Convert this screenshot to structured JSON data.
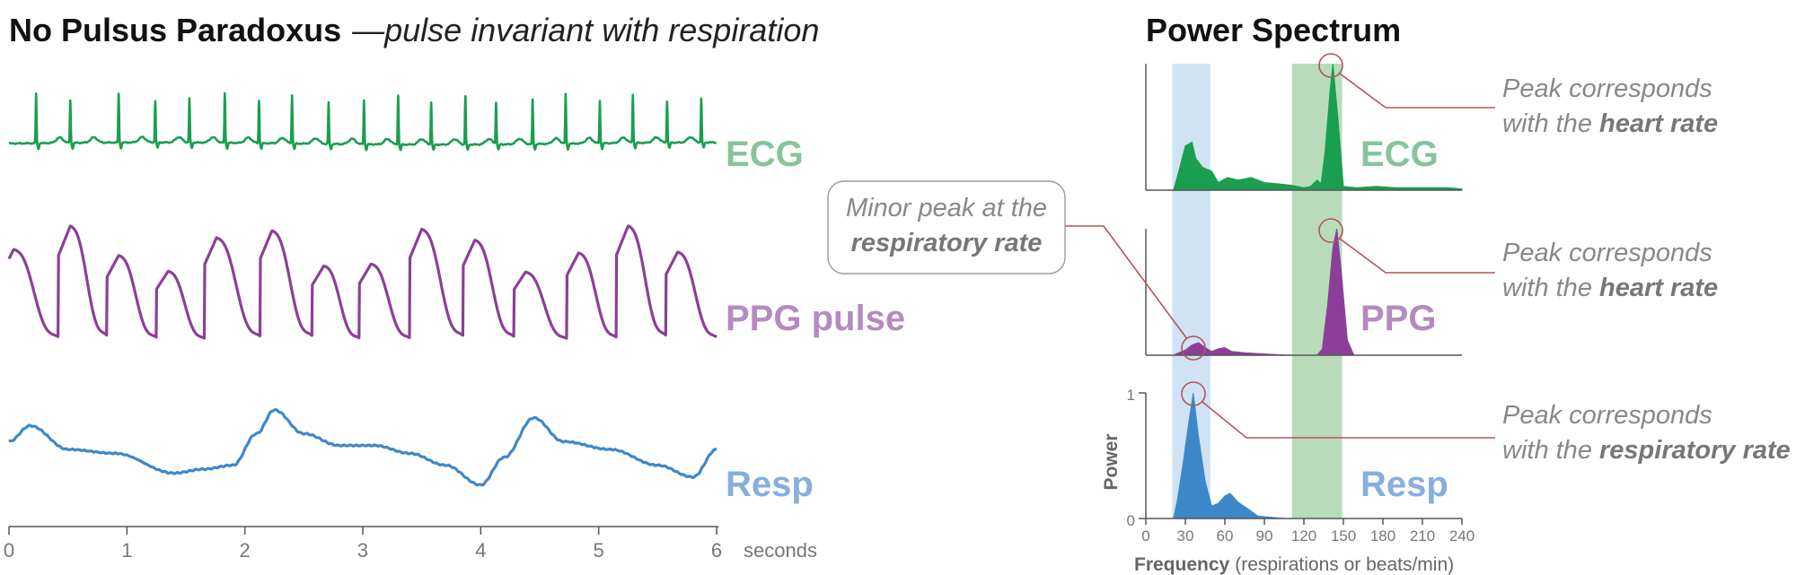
{
  "header": {
    "title": "No Pulsus Paradoxus",
    "dash": "—",
    "subtitle_pre": "pulse ",
    "subtitle_highlight": "invariant",
    "subtitle_post": " with respiration",
    "spectrum_title": "Power Spectrum"
  },
  "signals": {
    "ecg_label": "ECG",
    "ppg_label": "PPG pulse",
    "resp_label": "Resp"
  },
  "spectra": {
    "ecg_label": "ECG",
    "ppg_label": "PPG",
    "resp_label": "Resp"
  },
  "annotations": {
    "ecg_peak": {
      "line1": "Peak corresponds",
      "line2_pre": "with the ",
      "line2_bold": "heart rate"
    },
    "ppg_peak": {
      "line1": "Peak corresponds",
      "line2_pre": "with the ",
      "line2_bold": "heart rate"
    },
    "resp_peak": {
      "line1": "Peak corresponds",
      "line2_pre": "with the ",
      "line2_bold": "respiratory rate"
    },
    "minor_peak": {
      "line1": "Minor peak at the",
      "line2_bold": "respiratory rate"
    }
  },
  "colors": {
    "ecg": "#1a9e50",
    "ecg_label": "#86c59a",
    "ppg": "#8c3f98",
    "ppg_label": "#b48bc0",
    "resp": "#3d88c8",
    "resp_label": "#86aede",
    "resp_band": "#cfe3f4",
    "heart_band": "#b8dcb9",
    "callout": "#b5535c",
    "axis": "#555555"
  },
  "chart_data": [
    {
      "type": "line",
      "title": "No Pulsus Paradoxus —pulse invariant with respiration",
      "xlabel": "seconds",
      "xlim": [
        0,
        6
      ],
      "xticks": [
        0,
        1,
        2,
        3,
        4,
        5,
        6
      ],
      "series": [
        {
          "name": "ECG",
          "beats_s": [
            0.23,
            0.52,
            0.93,
            1.24,
            1.53,
            1.83,
            2.12,
            2.4,
            2.71,
            3.01,
            3.3,
            3.58,
            3.87,
            4.13,
            4.44,
            4.72,
            5.01,
            5.29,
            5.58,
            5.87
          ]
        },
        {
          "name": "PPG pulse",
          "peaks_s": [
            0.04,
            0.52,
            0.93,
            1.35,
            1.76,
            2.23,
            2.67,
            3.07,
            3.5,
            3.95,
            4.38,
            4.83,
            5.25,
            5.67
          ]
        },
        {
          "name": "Resp",
          "x": [
            0,
            0.18,
            0.5,
            0.9,
            1.4,
            1.65,
            1.9,
            2.1,
            2.25,
            2.5,
            2.8,
            3.1,
            3.4,
            3.7,
            4.0,
            4.2,
            4.45,
            4.7,
            5.1,
            5.5,
            5.8,
            6.0
          ],
          "y": [
            0.6,
            0.8,
            0.5,
            0.45,
            0.2,
            0.25,
            0.3,
            0.7,
            1.0,
            0.7,
            0.55,
            0.55,
            0.45,
            0.3,
            0.05,
            0.4,
            0.9,
            0.6,
            0.5,
            0.3,
            0.15,
            0.5
          ]
        }
      ]
    },
    {
      "type": "area",
      "title": "Power Spectrum",
      "xlabel": "Frequency",
      "xlabel_note": "(respirations or beats/min)",
      "ylabel": "Power",
      "xlim": [
        0,
        240
      ],
      "xticks": [
        0,
        30,
        60,
        90,
        120,
        150,
        180,
        210,
        240
      ],
      "ylim": [
        0,
        1
      ],
      "yticks": [
        0,
        1
      ],
      "bands": [
        {
          "name": "respiratory rate",
          "from": 20,
          "to": 49
        },
        {
          "name": "heart rate",
          "from": 111,
          "to": 149
        }
      ],
      "series": [
        {
          "name": "ECG",
          "x": [
            21,
            25,
            30,
            35,
            38,
            43,
            50,
            55,
            62,
            70,
            80,
            90,
            100,
            110,
            120,
            125,
            130,
            133,
            136,
            140,
            142,
            146,
            150,
            160,
            175,
            190,
            210,
            230,
            240
          ],
          "y": [
            0.0,
            0.15,
            0.35,
            0.38,
            0.25,
            0.18,
            0.15,
            0.06,
            0.1,
            0.08,
            0.1,
            0.06,
            0.05,
            0.04,
            0.02,
            0.03,
            0.08,
            0.05,
            0.3,
            0.8,
            1.0,
            0.55,
            0.03,
            0.02,
            0.03,
            0.02,
            0.02,
            0.02,
            0.01
          ]
        },
        {
          "name": "PPG",
          "x": [
            21,
            25,
            30,
            35,
            40,
            45,
            50,
            55,
            60,
            65,
            75,
            90,
            110,
            125,
            130,
            134,
            138,
            142,
            145,
            148,
            153,
            158,
            240
          ],
          "y": [
            0.0,
            0.02,
            0.04,
            0.08,
            0.1,
            0.06,
            0.03,
            0.05,
            0.06,
            0.03,
            0.02,
            0.01,
            0.0,
            0.0,
            0.0,
            0.05,
            0.4,
            0.85,
            1.0,
            0.7,
            0.12,
            0.0,
            0.0
          ]
        },
        {
          "name": "Resp",
          "x": [
            21,
            24,
            28,
            32,
            36,
            40,
            45,
            50,
            55,
            60,
            64,
            70,
            77,
            85,
            95,
            105,
            240
          ],
          "y": [
            0.0,
            0.15,
            0.42,
            0.72,
            1.0,
            0.65,
            0.3,
            0.1,
            0.12,
            0.18,
            0.2,
            0.13,
            0.08,
            0.02,
            0.01,
            0.0,
            0.0
          ]
        }
      ]
    }
  ]
}
